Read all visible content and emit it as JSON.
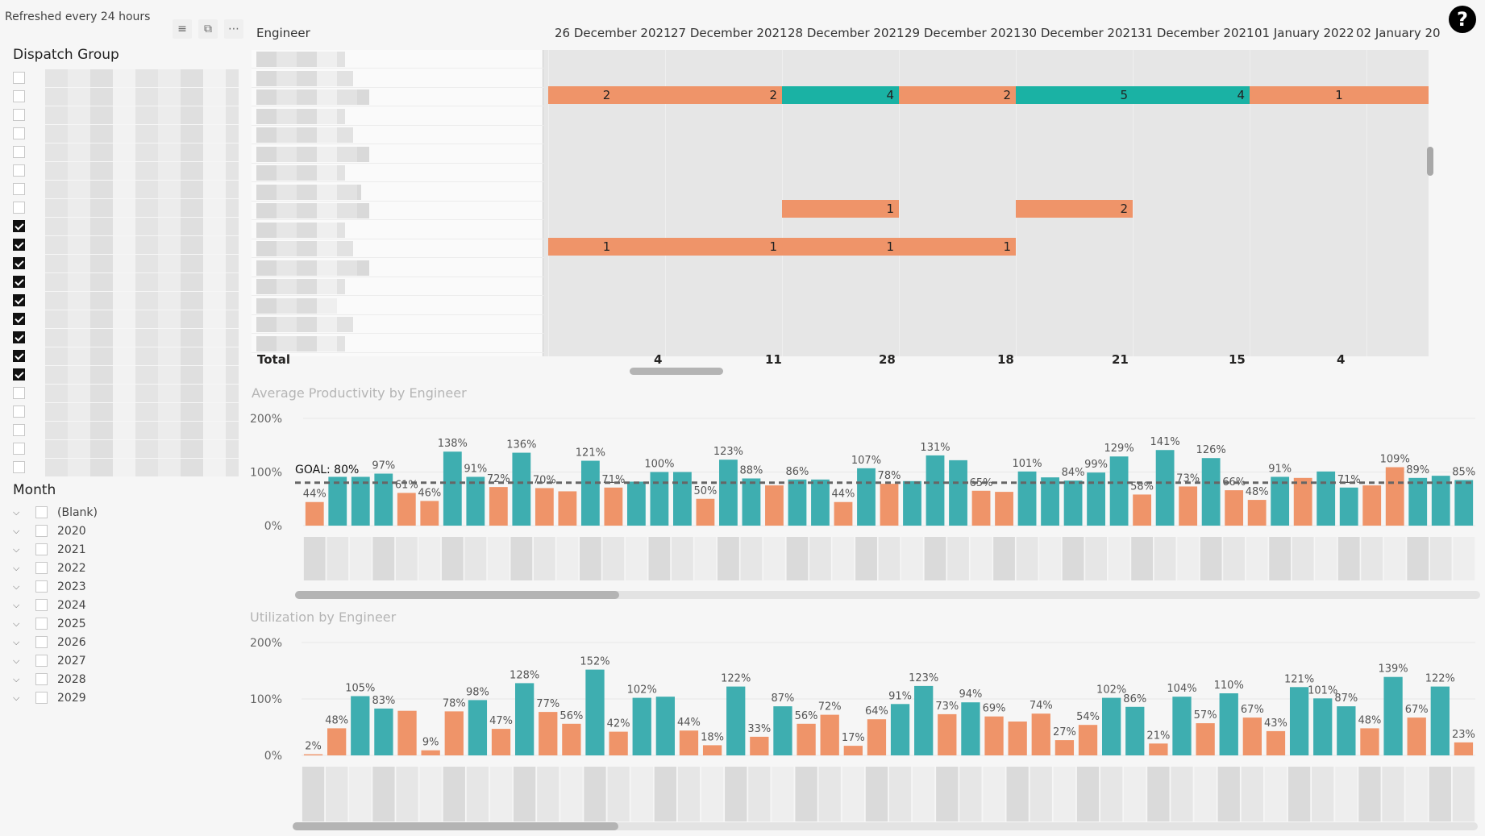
{
  "header": {
    "refreshed": "Refreshed every 24 hours",
    "icons": [
      "filter-icon",
      "focus-mode-icon",
      "more-options-icon"
    ],
    "help_label": "?"
  },
  "dispatch_group": {
    "title": "Dispatch Group",
    "items": [
      false,
      false,
      false,
      false,
      false,
      false,
      false,
      false,
      true,
      true,
      true,
      true,
      true,
      true,
      true,
      true,
      true,
      false,
      false,
      false,
      false,
      false
    ]
  },
  "month": {
    "title": "Month",
    "items": [
      "(Blank)",
      "2020",
      "2021",
      "2022",
      "2023",
      "2024",
      "2025",
      "2026",
      "2027",
      "2028",
      "2029"
    ]
  },
  "matrix": {
    "row_header": "Engineer",
    "columns": [
      "26 December 2021",
      "27 December 2021",
      "28 December 2021",
      "29 December 2021",
      "30 December 2021",
      "31 December 2021",
      "01 January 2022",
      "02 January 20"
    ],
    "total_label": "Total",
    "totals": [
      "4",
      "11",
      "28",
      "18",
      "21",
      "15",
      "4"
    ],
    "bars": [
      {
        "row": 2,
        "segments": [
          {
            "start": 0,
            "span": 1,
            "label": "2",
            "color": "orange",
            "center": true
          },
          {
            "start": 1,
            "span": 1,
            "label": "2",
            "color": "orange"
          },
          {
            "start": 2,
            "span": 1,
            "label": "4",
            "color": "teal"
          },
          {
            "start": 3,
            "span": 1,
            "label": "2",
            "color": "orange"
          },
          {
            "start": 4,
            "span": 1,
            "label": "5",
            "color": "teal"
          },
          {
            "start": 5,
            "span": 1,
            "label": "4",
            "color": "teal"
          },
          {
            "start": 6,
            "span": 1.55,
            "label": "1",
            "color": "orange",
            "center": true
          }
        ]
      },
      {
        "row": 8,
        "segments": [
          {
            "start": 2,
            "span": 1,
            "label": "1",
            "color": "orange"
          },
          {
            "start": 4,
            "span": 1,
            "label": "2",
            "color": "orange"
          }
        ]
      },
      {
        "row": 10,
        "segments": [
          {
            "start": 0,
            "span": 1,
            "label": "1",
            "color": "orange",
            "center": true
          },
          {
            "start": 1,
            "span": 1,
            "label": "1",
            "color": "orange"
          },
          {
            "start": 2,
            "span": 1,
            "label": "1",
            "color": "orange"
          },
          {
            "start": 3,
            "span": 1,
            "label": "1",
            "color": "orange"
          }
        ]
      }
    ]
  },
  "colors": {
    "teal": "#1ab2a4",
    "orange": "#ef9469",
    "teal_bar": "#3eaeb0",
    "orange_bar": "#ef9469"
  },
  "productivity": {
    "title": "Average Productivity by Engineer",
    "goal_label": "GOAL: 80%",
    "yticks": [
      "200%",
      "100%",
      "0%"
    ],
    "chart_data": {
      "type": "bar",
      "title": "Average Productivity by Engineer",
      "ylim": [
        0,
        200
      ],
      "goal": 80,
      "values": [
        44,
        91,
        91,
        97,
        61,
        46,
        138,
        91,
        72,
        136,
        70,
        64,
        121,
        71,
        82,
        100,
        100,
        50,
        123,
        88,
        75,
        86,
        86,
        44,
        107,
        78,
        83,
        131,
        122,
        65,
        63,
        101,
        90,
        84,
        99,
        129,
        58,
        141,
        73,
        126,
        66,
        48,
        91,
        89,
        101,
        71,
        75,
        109,
        89,
        93,
        85
      ],
      "colors": [
        "o",
        "t",
        "t",
        "t",
        "o",
        "o",
        "t",
        "t",
        "o",
        "t",
        "o",
        "o",
        "t",
        "o",
        "t",
        "t",
        "t",
        "o",
        "t",
        "t",
        "o",
        "t",
        "t",
        "o",
        "t",
        "o",
        "t",
        "t",
        "t",
        "o",
        "o",
        "t",
        "t",
        "t",
        "t",
        "t",
        "o",
        "t",
        "o",
        "t",
        "o",
        "o",
        "t",
        "o",
        "t",
        "t",
        "o",
        "o",
        "t",
        "t",
        "t"
      ],
      "labels": [
        "44%",
        "",
        "",
        "97%",
        "61%",
        "46%",
        "138%",
        "91%",
        "72%",
        "136%",
        "70%",
        "",
        "121%",
        "71%",
        "",
        "100%",
        "",
        "50%",
        "123%",
        "88%",
        "",
        "86%",
        "",
        "44%",
        "107%",
        "78%",
        "",
        "131%",
        "",
        "65%",
        "",
        "101%",
        "",
        "84%",
        "99%",
        "129%",
        "58%",
        "141%",
        "73%",
        "126%",
        "66%",
        "48%",
        "91%",
        "",
        "",
        "71%",
        "",
        "109%",
        "89%",
        "",
        "85%"
      ]
    }
  },
  "utilization": {
    "title": "Utilization by Engineer",
    "yticks": [
      "200%",
      "100%",
      "0%"
    ],
    "chart_data": {
      "type": "bar",
      "title": "Utilization by Engineer",
      "ylim": [
        0,
        200
      ],
      "values": [
        2,
        48,
        105,
        83,
        79,
        9,
        78,
        98,
        47,
        128,
        77,
        56,
        152,
        42,
        102,
        104,
        44,
        18,
        122,
        33,
        87,
        56,
        72,
        17,
        64,
        91,
        123,
        73,
        94,
        69,
        60,
        74,
        27,
        54,
        102,
        86,
        21,
        104,
        57,
        110,
        67,
        43,
        121,
        101,
        87,
        48,
        139,
        67,
        122,
        23
      ],
      "colors": [
        "o",
        "o",
        "t",
        "t",
        "o",
        "o",
        "o",
        "t",
        "o",
        "t",
        "o",
        "o",
        "t",
        "o",
        "t",
        "t",
        "o",
        "o",
        "t",
        "o",
        "t",
        "o",
        "o",
        "o",
        "o",
        "t",
        "t",
        "o",
        "t",
        "o",
        "o",
        "o",
        "o",
        "o",
        "t",
        "t",
        "o",
        "t",
        "o",
        "t",
        "o",
        "o",
        "t",
        "t",
        "t",
        "o",
        "t",
        "o",
        "t",
        "o"
      ],
      "labels": [
        "2%",
        "48%",
        "105%",
        "83%",
        "",
        "9%",
        "78%",
        "98%",
        "47%",
        "128%",
        "77%",
        "56%",
        "152%",
        "42%",
        "102%",
        "",
        "44%",
        "18%",
        "122%",
        "33%",
        "87%",
        "56%",
        "72%",
        "17%",
        "64%",
        "91%",
        "123%",
        "73%",
        "94%",
        "69%",
        "",
        "74%",
        "27%",
        "54%",
        "102%",
        "86%",
        "21%",
        "104%",
        "57%",
        "110%",
        "67%",
        "43%",
        "121%",
        "101%",
        "87%",
        "48%",
        "139%",
        "67%",
        "122%",
        "23%"
      ]
    }
  }
}
